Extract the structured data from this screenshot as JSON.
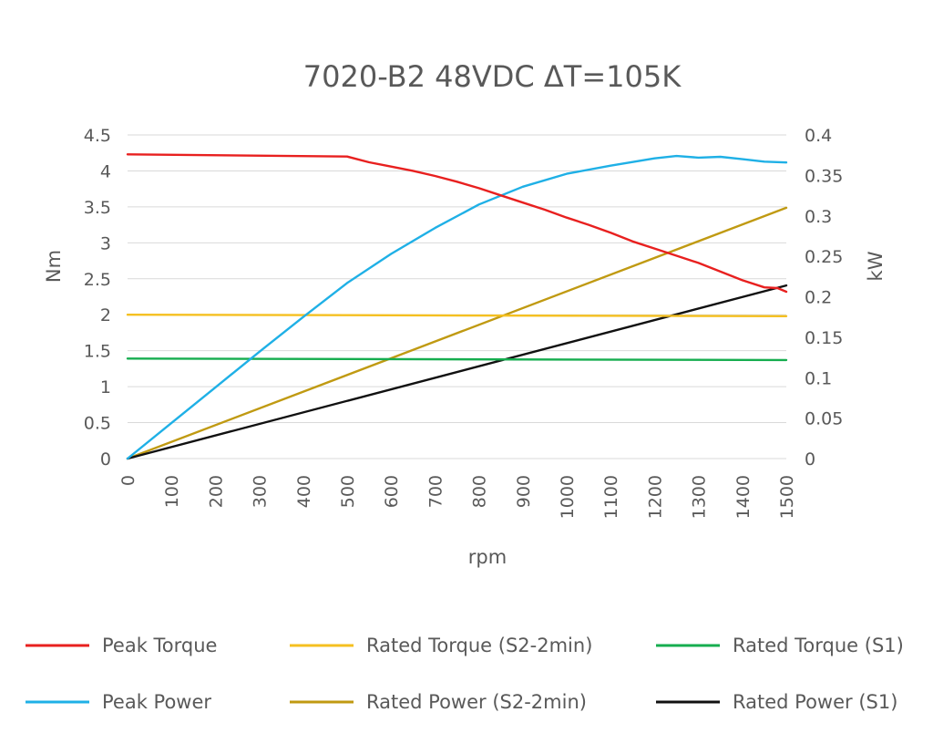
{
  "chart_data": {
    "type": "line",
    "title": "7020-B2 48VDC ΔT=105K",
    "xlabel": "rpm",
    "ylabel": "Nm",
    "y2label": "kW",
    "xlim": [
      0,
      1500
    ],
    "ylim": [
      0,
      4.5
    ],
    "y2lim": [
      0,
      0.4
    ],
    "x_ticks": [
      "0",
      "100",
      "200",
      "300",
      "400",
      "500",
      "600",
      "700",
      "800",
      "900",
      "1000",
      "1100",
      "1200",
      "1300",
      "1400",
      "1500"
    ],
    "y_ticks": [
      "0",
      "0.5",
      "1",
      "1.5",
      "2",
      "2.5",
      "3",
      "3.5",
      "4",
      "4.5"
    ],
    "y2_ticks": [
      "0",
      "0.05",
      "0.1",
      "0.15",
      "0.2",
      "0.25",
      "0.3",
      "0.35",
      "0.4"
    ],
    "grid": true,
    "legend_position": "bottom",
    "series": [
      {
        "name": "Peak Torque",
        "axis": "left",
        "color": "#e8201f",
        "x": [
          0,
          500,
          550,
          600,
          650,
          700,
          750,
          800,
          850,
          900,
          950,
          1000,
          1050,
          1100,
          1150,
          1200,
          1250,
          1300,
          1350,
          1400,
          1450,
          1480,
          1500
        ],
        "y": [
          4.23,
          4.2,
          4.12,
          4.06,
          4.0,
          3.93,
          3.85,
          3.76,
          3.66,
          3.56,
          3.46,
          3.35,
          3.25,
          3.14,
          3.02,
          2.92,
          2.82,
          2.72,
          2.6,
          2.48,
          2.38,
          2.37,
          2.32
        ]
      },
      {
        "name": "Peak Power",
        "axis": "right",
        "color": "#1fb0e6",
        "x": [
          0,
          100,
          200,
          300,
          400,
          500,
          600,
          700,
          800,
          900,
          1000,
          1100,
          1200,
          1250,
          1300,
          1350,
          1400,
          1450,
          1500
        ],
        "y": [
          0,
          0.044,
          0.088,
          0.132,
          0.175,
          0.217,
          0.253,
          0.285,
          0.314,
          0.336,
          0.352,
          0.362,
          0.371,
          0.374,
          0.372,
          0.373,
          0.37,
          0.367,
          0.366
        ]
      },
      {
        "name": "Rated Torque (S2-2min)",
        "axis": "left",
        "color": "#f5c020",
        "x": [
          0,
          1500
        ],
        "y": [
          2.0,
          1.98
        ]
      },
      {
        "name": "Rated Power (S2-2min)",
        "axis": "right",
        "color": "#c09a12",
        "x": [
          0,
          1500
        ],
        "y": [
          0,
          0.31
        ]
      },
      {
        "name": "Rated Torque (S1)",
        "axis": "left",
        "color": "#16ad4f",
        "x": [
          0,
          1500
        ],
        "y": [
          1.39,
          1.37
        ]
      },
      {
        "name": "Rated Power (S1)",
        "axis": "right",
        "color": "#111111",
        "x": [
          0,
          1500
        ],
        "y": [
          0,
          0.214
        ]
      }
    ]
  }
}
